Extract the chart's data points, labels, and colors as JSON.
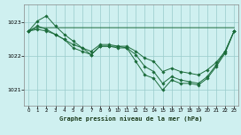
{
  "title": "Graphe pression niveau de la mer (hPa)",
  "bg_color": "#cff0f0",
  "grid_color": "#99cccc",
  "line_color": "#1a6b3a",
  "ylim": [
    1020.55,
    1023.55
  ],
  "yticks": [
    1021,
    1022,
    1023
  ],
  "xlim": [
    -0.5,
    23.5
  ],
  "xticks": [
    0,
    1,
    2,
    3,
    4,
    5,
    6,
    7,
    8,
    9,
    10,
    11,
    12,
    13,
    14,
    15,
    16,
    17,
    18,
    19,
    20,
    21,
    22,
    23
  ],
  "series": [
    [
      1022.75,
      1023.05,
      1023.2,
      1022.9,
      1022.65,
      1022.45,
      1022.25,
      1022.05,
      1022.3,
      1022.3,
      1022.3,
      1022.25,
      1021.85,
      1021.45,
      1021.35,
      1021.0,
      1021.3,
      1021.2,
      1021.2,
      1021.15,
      1021.35,
      1021.7,
      1022.1,
      1022.75
    ],
    [
      1022.75,
      1022.9,
      1022.8,
      1022.65,
      1022.5,
      1022.25,
      1022.15,
      1022.05,
      1022.3,
      1022.3,
      1022.25,
      1022.25,
      1022.05,
      1021.7,
      1021.55,
      1021.2,
      1021.4,
      1021.3,
      1021.25,
      1021.2,
      1021.4,
      1021.75,
      1022.15,
      1022.75
    ],
    [
      1022.75,
      1022.8,
      1022.75,
      1022.65,
      1022.5,
      1022.35,
      1022.25,
      1022.15,
      1022.35,
      1022.35,
      1022.3,
      1022.3,
      1022.15,
      1021.95,
      1021.85,
      1021.55,
      1021.65,
      1021.55,
      1021.5,
      1021.45,
      1021.6,
      1021.82,
      1022.15,
      1022.75
    ],
    [
      1022.75,
      1022.85,
      1022.85,
      1022.85,
      1022.85,
      1022.85,
      1022.85,
      1022.85,
      1022.85,
      1022.85,
      1022.85,
      1022.85,
      1022.85,
      1022.85,
      1022.85,
      1022.85,
      1022.85,
      1022.85,
      1022.85,
      1022.85,
      1022.85,
      null,
      null,
      1022.85
    ]
  ]
}
